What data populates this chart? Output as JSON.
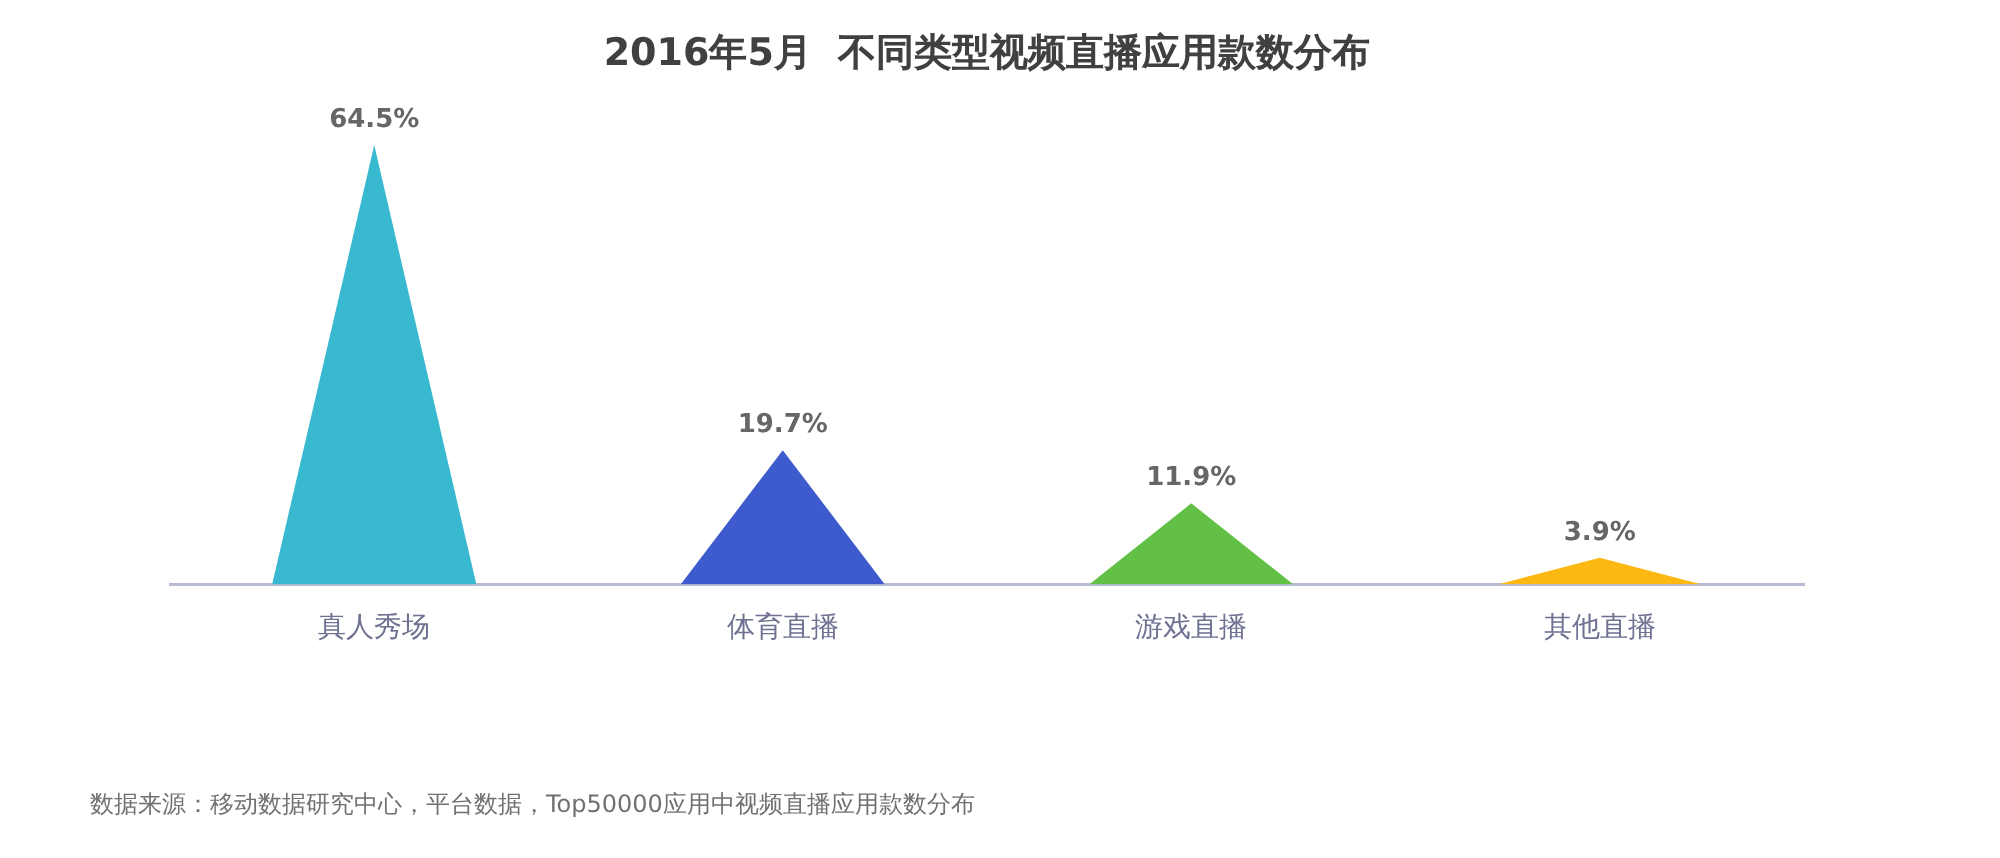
{
  "chart_data": {
    "type": "bar",
    "title": "2016年5月  不同类型视频直播应用款数分布",
    "categories": [
      "真人秀场",
      "体育直播",
      "游戏直播",
      "其他直播"
    ],
    "values": [
      64.5,
      19.7,
      11.9,
      3.9
    ],
    "colors": [
      "#38b9d0",
      "#3d5bcc",
      "#62c046",
      "#fdb813"
    ],
    "data_labels": true,
    "value_labels": [
      "64.5%",
      "19.7%",
      "11.9%",
      "3.9%"
    ],
    "annotations": [
      "数据来源：移动数据研究中心，平台数据，Top50000应用中视频直播应用款数分布"
    ]
  }
}
